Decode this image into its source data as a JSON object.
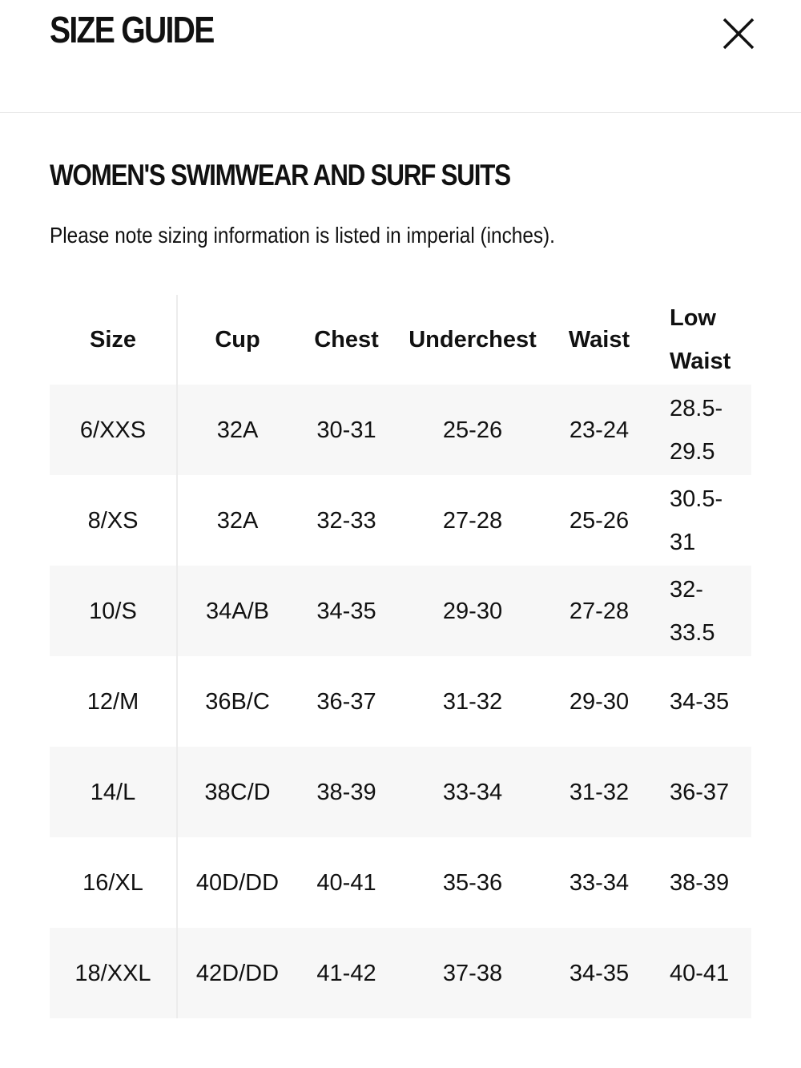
{
  "header": {
    "title": "SIZE GUIDE"
  },
  "section": {
    "title": "WOMEN'S SWIMWEAR AND SURF SUITS",
    "note": "Please note sizing information is listed in imperial (inches)."
  },
  "table": {
    "columns": [
      "Size",
      "Cup",
      "Chest",
      "Underchest",
      "Waist",
      "Low Waist"
    ],
    "rows": [
      [
        "6/XXS",
        "32A",
        "30-31",
        "25-26",
        "23-24",
        "28.5-29.5"
      ],
      [
        "8/XS",
        "32A",
        "32-33",
        "27-28",
        "25-26",
        "30.5-31"
      ],
      [
        "10/S",
        "34A/B",
        "34-35",
        "29-30",
        "27-28",
        "32-33.5"
      ],
      [
        "12/M",
        "36B/C",
        "36-37",
        "31-32",
        "29-30",
        "34-35"
      ],
      [
        "14/L",
        "38C/D",
        "38-39",
        "33-34",
        "31-32",
        "36-37"
      ],
      [
        "16/XL",
        "40D/DD",
        "40-41",
        "35-36",
        "33-34",
        "38-39"
      ],
      [
        "18/XXL",
        "42D/DD",
        "41-42",
        "37-38",
        "34-35",
        "40-41"
      ]
    ]
  }
}
